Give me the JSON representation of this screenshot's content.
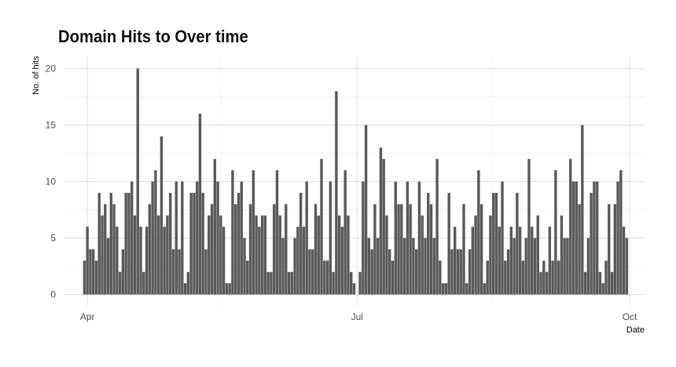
{
  "chart_data": {
    "type": "bar",
    "title": "Domain Hits to Over time",
    "xlabel": "Date",
    "ylabel": "No. of hits",
    "x_start": "2023-03-31",
    "x_end": "2023-09-30",
    "xlim": [
      "2023-03-24",
      "2023-10-06"
    ],
    "ylim": [
      -1,
      21
    ],
    "y_ticks": [
      0,
      5,
      10,
      15,
      20
    ],
    "x_ticks": [
      {
        "label": "Apr",
        "date": "2023-04-01"
      },
      {
        "label": "Jul",
        "date": "2023-07-01"
      },
      {
        "label": "Oct",
        "date": "2023-10-01"
      }
    ],
    "x_minor_ticks": [
      "2023-05-16",
      "2023-08-16"
    ],
    "grid": true,
    "bar_color": "#595959",
    "values": [
      3,
      6,
      4,
      4,
      3,
      9,
      7,
      8,
      5,
      9,
      8,
      6,
      2,
      4,
      9,
      9,
      10,
      7,
      20,
      6,
      2,
      6,
      8,
      10,
      11,
      7,
      14,
      6,
      7,
      9,
      4,
      10,
      4,
      10,
      1,
      2,
      9,
      9,
      10,
      16,
      9,
      4,
      7,
      8,
      12,
      10,
      7,
      6,
      1,
      1,
      11,
      8,
      9,
      10,
      5,
      3,
      8,
      11,
      7,
      6,
      7,
      7,
      2,
      2,
      8,
      11,
      7,
      5,
      8,
      2,
      2,
      5,
      6,
      9,
      6,
      10,
      4,
      4,
      8,
      7,
      12,
      3,
      3,
      10,
      2,
      18,
      7,
      6,
      11,
      7,
      2,
      1,
      0,
      2,
      10,
      15,
      5,
      4,
      8,
      5,
      13,
      12,
      7,
      4,
      3,
      10,
      8,
      8,
      5,
      10,
      8,
      5,
      4,
      10,
      7,
      5,
      9,
      8,
      5,
      12,
      3,
      1,
      1,
      9,
      4,
      6,
      4,
      4,
      8,
      1,
      4,
      6,
      7,
      11,
      8,
      1,
      3,
      7,
      9,
      9,
      6,
      10,
      3,
      4,
      6,
      5,
      9,
      6,
      3,
      5,
      12,
      6,
      5,
      7,
      2,
      3,
      2,
      6,
      3,
      11,
      3,
      7,
      5,
      5,
      12,
      10,
      10,
      8,
      15,
      2,
      5,
      9,
      10,
      10,
      2,
      1,
      3,
      8,
      2,
      8,
      10,
      11,
      6,
      5
    ]
  }
}
